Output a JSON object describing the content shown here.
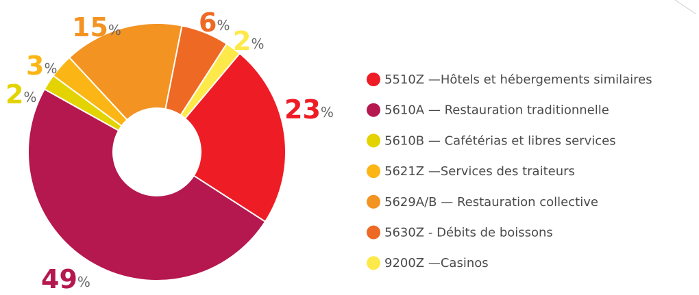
{
  "chart_data": {
    "type": "donut",
    "categories": [
      "5510Z —Hôtels et hébergements similaires",
      "5610A — Restauration traditionnelle",
      "5610B — Cafétérias et libres services",
      "5621Z —Services des traiteurs",
      "5629A/B — Restauration collective",
      "5630Z - Débits de boissons",
      "9200Z —Casinos"
    ],
    "values": [
      23,
      49,
      2,
      3,
      15,
      6,
      2
    ],
    "unit": "%",
    "colors": [
      "#ee1c25",
      "#b5174f",
      "#e3d300",
      "#fbb616",
      "#f39322",
      "#ee6a24",
      "#fde94a"
    ]
  }
}
